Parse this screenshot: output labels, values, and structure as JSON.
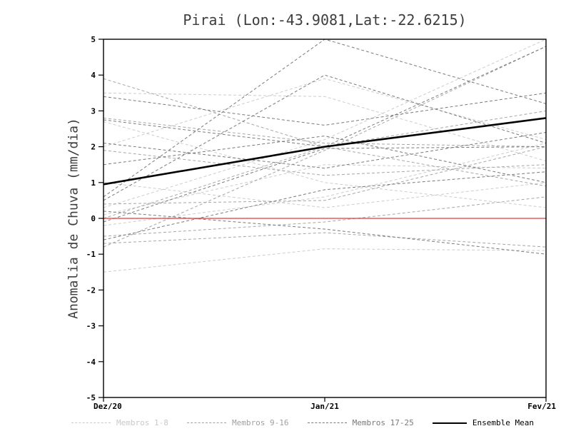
{
  "title": "Pirai (Lon:-43.9081,Lat:-22.6215)",
  "ylabel": "Anomalia de Chuva (mm/dia)",
  "legend": [
    {
      "label": "Membros 1-8",
      "color": "#c9c9c9",
      "style": "dashed"
    },
    {
      "label": "Membros 9-16",
      "color": "#a0a0a0",
      "style": "dashed"
    },
    {
      "label": "Membros 17-25",
      "color": "#7a7a7a",
      "style": "dashed"
    },
    {
      "label": "Ensemble Mean",
      "color": "#000000",
      "style": "solid"
    }
  ],
  "chart_data": {
    "type": "line",
    "title": "Pirai (Lon:-43.9081,Lat:-22.6215)",
    "xlabel": "",
    "ylabel": "Anomalia de Chuva (mm/dia)",
    "x": [
      "Dez/20",
      "Jan/21",
      "Fev/21"
    ],
    "ylim": [
      -5,
      5
    ],
    "y_ticks": [
      -5,
      -4,
      -3,
      -2,
      -1,
      0,
      1,
      2,
      3,
      4,
      5
    ],
    "grid": false,
    "legend_position": "bottom",
    "zero_line": {
      "y": 0,
      "color": "#e03a3a"
    },
    "ensemble_mean": [
      0.95,
      2.0,
      2.8
    ],
    "member_groups": [
      {
        "name": "Membros 1-8",
        "color": "#cccccc",
        "members": [
          [
            3.5,
            3.4,
            1.6
          ],
          [
            -1.5,
            -0.85,
            -0.9
          ],
          [
            2.7,
            1.0,
            0.3
          ],
          [
            0.3,
            2.2,
            5.0
          ],
          [
            2.0,
            3.9,
            2.2
          ],
          [
            0.1,
            1.5,
            1.4
          ],
          [
            -0.2,
            0.6,
            2.1
          ],
          [
            1.0,
            0.3,
            1.0
          ]
        ]
      },
      {
        "name": "Membros 9-16",
        "color": "#a6a6a6",
        "members": [
          [
            3.9,
            2.0,
            0.9
          ],
          [
            -0.8,
            1.9,
            4.8
          ],
          [
            0.4,
            0.5,
            2.0
          ],
          [
            2.8,
            2.1,
            2.0
          ],
          [
            -0.5,
            -0.1,
            0.6
          ],
          [
            1.9,
            1.2,
            1.5
          ],
          [
            0.0,
            2.0,
            3.0
          ],
          [
            -0.7,
            -0.4,
            -0.8
          ]
        ]
      },
      {
        "name": "Membros 17-25",
        "color": "#7a7a7a",
        "members": [
          [
            2.75,
            2.0,
            4.8
          ],
          [
            0.5,
            4.0,
            2.1
          ],
          [
            -0.1,
            1.95,
            2.0
          ],
          [
            2.1,
            1.4,
            2.4
          ],
          [
            0.2,
            -0.3,
            -1.0
          ],
          [
            3.4,
            2.6,
            3.5
          ],
          [
            -0.6,
            0.8,
            1.3
          ],
          [
            1.5,
            2.3,
            1.0
          ],
          [
            0.6,
            5.0,
            3.2
          ]
        ]
      }
    ]
  }
}
